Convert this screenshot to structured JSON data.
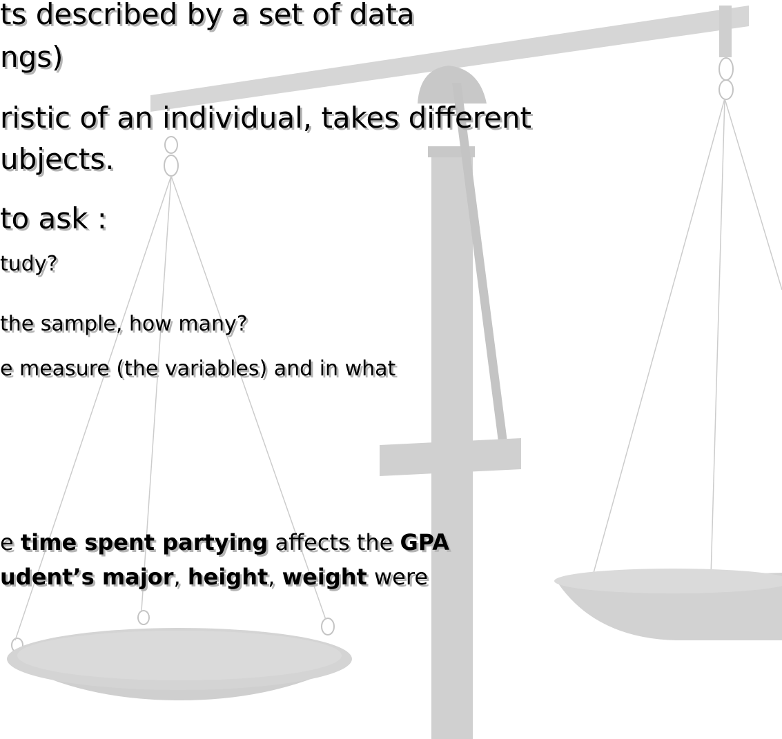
{
  "slide": {
    "lines": [
      {
        "level": 1,
        "segments": [
          {
            "text": "ts described by a set of data",
            "bold": false
          }
        ]
      },
      {
        "level": 1,
        "segments": [
          {
            "text": "ngs)",
            "bold": false
          }
        ]
      },
      {
        "level": 1,
        "segments": [
          {
            "text": "ristic of an individual, takes different",
            "bold": false
          }
        ]
      },
      {
        "level": 1,
        "segments": [
          {
            "text": "ubjects.",
            "bold": false
          }
        ]
      },
      {
        "level": 1,
        "segments": [
          {
            "text": "to ask :",
            "bold": false
          }
        ]
      },
      {
        "level": 2,
        "segments": [
          {
            "text": "tudy?",
            "bold": false
          }
        ]
      },
      {
        "level": 2,
        "segments": [
          {
            "text": "the sample, how many?",
            "bold": false
          }
        ]
      },
      {
        "level": 2,
        "segments": [
          {
            "text": "e measure (the variables) and in what",
            "bold": false
          }
        ]
      },
      {
        "level": 3,
        "segments": [
          {
            "text": "e ",
            "bold": false
          },
          {
            "text": "time spent partying",
            "bold": true
          },
          {
            "text": " affects the ",
            "bold": false
          },
          {
            "text": "GPA",
            "bold": true
          }
        ]
      },
      {
        "level": 3,
        "segments": [
          {
            "text": "udent’s major",
            "bold": true
          },
          {
            "text": ", ",
            "bold": false
          },
          {
            "text": "height",
            "bold": true
          },
          {
            "text": ", ",
            "bold": false
          },
          {
            "text": "weight",
            "bold": true
          },
          {
            "text": " were",
            "bold": false
          }
        ]
      }
    ]
  }
}
